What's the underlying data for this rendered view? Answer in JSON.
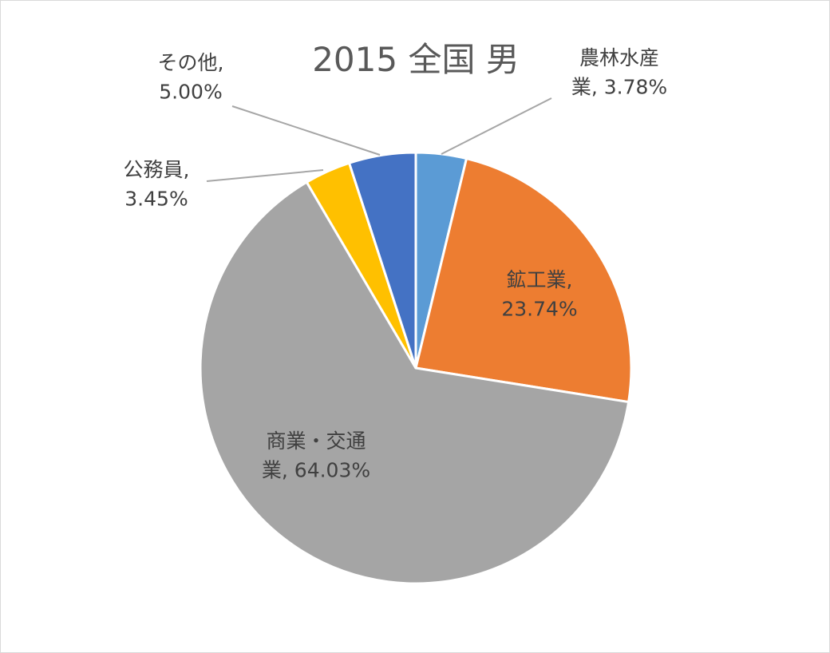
{
  "chart_data": {
    "type": "pie",
    "title": "2015 全国 男",
    "slices": [
      {
        "name": "農林水産業",
        "value": 3.78,
        "color": "#5B9BD5",
        "label_lines": [
          "農林水産",
          "業, 3.78%"
        ]
      },
      {
        "name": "鉱工業",
        "value": 23.74,
        "color": "#ED7D31",
        "label_lines": [
          "鉱工業,",
          "23.74%"
        ]
      },
      {
        "name": "商業・交通業",
        "value": 64.03,
        "color": "#A5A5A5",
        "label_lines": [
          "商業・交通",
          "業, 64.03%"
        ]
      },
      {
        "name": "公務員",
        "value": 3.45,
        "color": "#FFC000",
        "label_lines": [
          "公務員,",
          "3.45%"
        ]
      },
      {
        "name": "その他",
        "value": 5.0,
        "color": "#4472C4",
        "label_lines": [
          "その他,",
          "5.00%"
        ]
      }
    ],
    "legend": "none"
  }
}
